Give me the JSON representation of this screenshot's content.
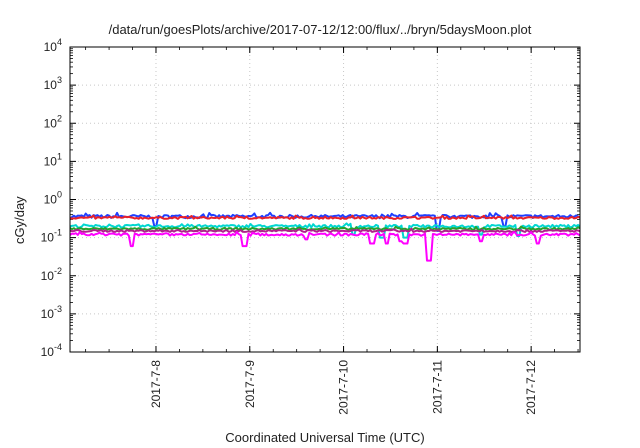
{
  "chart_data": {
    "type": "line",
    "title": "/data/run/goesPlots/archive/2017-07-12/12:00/flux/../bryn/5daysMoon.plot",
    "xlabel": "Coordinated Universal Time (UTC)",
    "ylabel": "cGy/day",
    "yscale": "log",
    "ylim": [
      0.0001,
      10000
    ],
    "xlim": [
      "2017-07-07T02:00",
      "2017-07-12T12:30"
    ],
    "grid": true,
    "y_ticks": [
      {
        "base": "10",
        "exp": "-4"
      },
      {
        "base": "10",
        "exp": "-3"
      },
      {
        "base": "10",
        "exp": "-2"
      },
      {
        "base": "10",
        "exp": "-1"
      },
      {
        "base": "10",
        "exp": "0"
      },
      {
        "base": "10",
        "exp": "1"
      },
      {
        "base": "10",
        "exp": "2"
      },
      {
        "base": "10",
        "exp": "3"
      },
      {
        "base": "10",
        "exp": "4"
      }
    ],
    "x_ticks": [
      "2017-7-8",
      "2017-7-9",
      "2017-7-10",
      "2017-7-11",
      "2017-7-12"
    ],
    "series": [
      {
        "color": "#1f3fff",
        "base": 0.36,
        "noise": 0.1,
        "dips": [
          [
            0.9,
            0.2
          ],
          [
            3.9,
            0.15
          ],
          [
            4.6,
            0.2
          ]
        ]
      },
      {
        "color": "#e8202a",
        "base": 0.33,
        "noise": 0.06,
        "dips": []
      },
      {
        "color": "#00d7d0",
        "base": 0.2,
        "noise": 0.08,
        "dips": [
          [
            3.0,
            0.12
          ],
          [
            3.3,
            0.1
          ],
          [
            3.55,
            0.1
          ],
          [
            4.35,
            0.12
          ],
          [
            4.75,
            0.11
          ]
        ]
      },
      {
        "color": "#2aa02a",
        "base": 0.17,
        "noise": 0.06,
        "dips": []
      },
      {
        "color": "#b0208c",
        "base": 0.15,
        "noise": 0.06,
        "dips": []
      },
      {
        "color": "#ff00ff",
        "base": 0.12,
        "noise": 0.07,
        "dips": [
          [
            0.65,
            0.06
          ],
          [
            1.85,
            0.06
          ],
          [
            2.5,
            0.09
          ],
          [
            3.2,
            0.07
          ],
          [
            3.35,
            0.07
          ],
          [
            3.5,
            0.08
          ],
          [
            3.55,
            0.07
          ],
          [
            3.8,
            0.025
          ],
          [
            4.35,
            0.08
          ],
          [
            4.95,
            0.07
          ]
        ]
      }
    ]
  }
}
